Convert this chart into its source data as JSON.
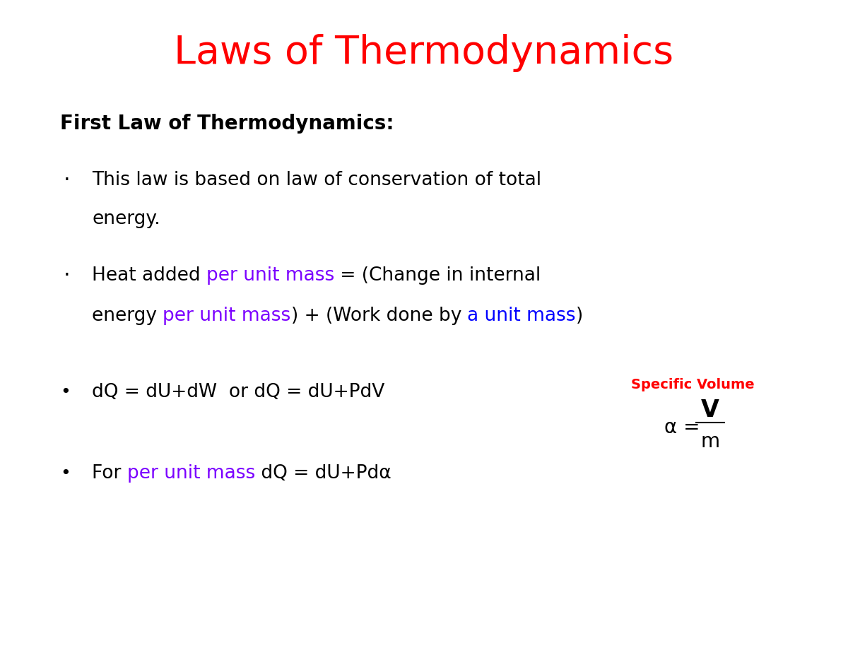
{
  "title": "Laws of Thermodynamics",
  "title_color": "#FF0000",
  "title_fontsize": 40,
  "background_color": "#FFFFFF",
  "subtitle": "First Law of Thermodynamics:",
  "subtitle_fontsize": 20,
  "subtitle_color": "#000000",
  "bullet1_line1": "This law is based on law of conservation of total",
  "bullet1_line2": "energy.",
  "bullet1_fontsize": 19,
  "bullet2_line1_parts": [
    {
      "text": "Heat added ",
      "color": "#000000"
    },
    {
      "text": "per unit mass",
      "color": "#7B00FF"
    },
    {
      "text": " = (Change in internal",
      "color": "#000000"
    }
  ],
  "bullet2_line2_parts": [
    {
      "text": "energy ",
      "color": "#000000"
    },
    {
      "text": "per unit mass",
      "color": "#7B00FF"
    },
    {
      "text": ") + (Work done by ",
      "color": "#000000"
    },
    {
      "text": "a unit mass",
      "color": "#0000FF"
    },
    {
      "text": ")",
      "color": "#000000"
    }
  ],
  "bullet2_fontsize": 19,
  "bullet3_text": "dQ = dU+dW  or dQ = dU+PdV",
  "bullet3_fontsize": 19,
  "bullet4_parts": [
    {
      "text": "For ",
      "color": "#000000"
    },
    {
      "text": "per unit mass",
      "color": "#7B00FF"
    },
    {
      "text": " dQ = dU+Pdα",
      "color": "#000000"
    }
  ],
  "bullet4_fontsize": 19,
  "specific_volume_label": "Specific Volume",
  "specific_volume_color": "#FF0000",
  "specific_volume_fontsize": 14,
  "formula_fontsize": 20
}
